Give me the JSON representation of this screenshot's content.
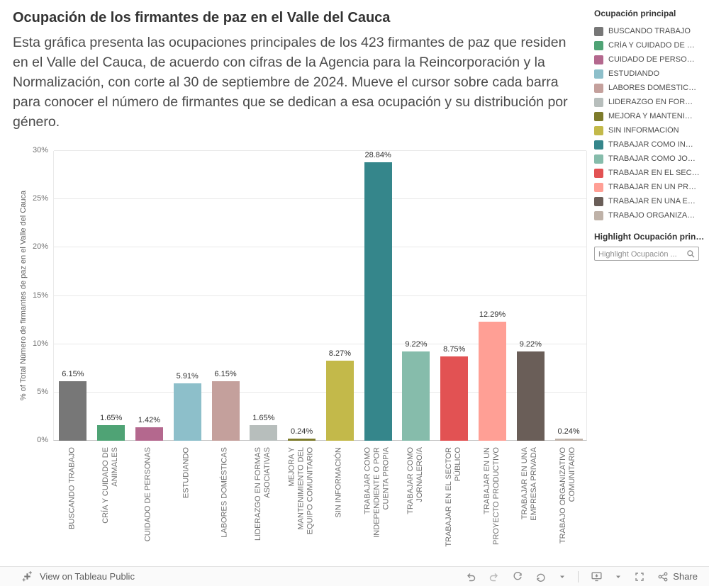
{
  "header": {
    "title": "Ocupación de los firmantes de paz en el Valle del Cauca",
    "description": "Esta gráfica presenta las ocupaciones principales de los 423 firmantes de paz que residen en el Valle del Cauca, de acuerdo con cifras de la Agencia para la Reincorporación y la Normalización, con corte al 30 de septiembre de 2024. Mueve el cursor sobre cada barra para conocer el número de firmantes que se dedican a esa ocupación y su distribución por género."
  },
  "chart_data": {
    "type": "bar",
    "title": "Ocupación de los firmantes de paz en el Valle del Cauca",
    "xlabel": "",
    "ylabel": "% of Total Número de firmantes de paz en el Valle del Cauca",
    "ylim": [
      0,
      30
    ],
    "yticks": [
      0,
      5,
      10,
      15,
      20,
      25,
      30
    ],
    "ytick_labels": [
      "0%",
      "5%",
      "10%",
      "15%",
      "20%",
      "25%",
      "30%"
    ],
    "grid": true,
    "legend_position": "right",
    "categories": [
      "BUSCANDO TRABAJO",
      "CRÍA Y CUIDADO DE ANIMALES",
      "CUIDADO DE PERSONAS",
      "ESTUDIANDO",
      "LABORES DOMÉSTICAS",
      "LIDERAZGO EN FORMAS ASOCIATIVAS",
      "MEJORA Y MANTENIMIENTO DEL EQUIPO COMUNITARIO",
      "SIN INFORMACIÓN",
      "TRABAJAR COMO INDEPENDIENTE O POR CUENTA PROPIA",
      "TRABAJAR COMO JORNALERO/A",
      "TRABAJAR EN EL SECTOR PÚBLICO",
      "TRABAJAR EN UN PROYECTO PRODUCTIVO",
      "TRABAJAR EN UNA EMPRESA PRIVADA",
      "TRABAJO ORGANIZATIVO COMUNITARIO"
    ],
    "values": [
      6.15,
      1.65,
      1.42,
      5.91,
      6.15,
      1.65,
      0.24,
      8.27,
      28.84,
      9.22,
      8.75,
      12.29,
      9.22,
      0.24
    ],
    "bar_labels": [
      "6.15%",
      "1.65%",
      "1.42%",
      "5.91%",
      "6.15%",
      "1.65%",
      "0.24%",
      "8.27%",
      "28.84%",
      "9.22%",
      "8.75%",
      "12.29%",
      "9.22%",
      "0.24%"
    ],
    "colors": [
      "#777777",
      "#4fa375",
      "#b4688e",
      "#8dbfca",
      "#c4a09c",
      "#b7bebc",
      "#7d7b2b",
      "#c3b94a",
      "#35868b",
      "#86bcab",
      "#e25253",
      "#ff9f95",
      "#6a5e58",
      "#bfb2a8"
    ]
  },
  "legend": {
    "title": "Ocupación principal",
    "items": [
      {
        "label": "BUSCANDO TRABAJO",
        "color": "#777777"
      },
      {
        "label": "CRÍA Y CUIDADO DE …",
        "color": "#4fa375"
      },
      {
        "label": "CUIDADO DE PERSO…",
        "color": "#b4688e"
      },
      {
        "label": "ESTUDIANDO",
        "color": "#8dbfca"
      },
      {
        "label": "LABORES DOMÉSTIC…",
        "color": "#c4a09c"
      },
      {
        "label": "LIDERAZGO EN FOR…",
        "color": "#b7bebc"
      },
      {
        "label": "MEJORA Y MANTENI…",
        "color": "#7d7b2b"
      },
      {
        "label": "SIN INFORMACIÓN",
        "color": "#c3b94a"
      },
      {
        "label": "TRABAJAR COMO IN…",
        "color": "#35868b"
      },
      {
        "label": "TRABAJAR COMO JO…",
        "color": "#86bcab"
      },
      {
        "label": "TRABAJAR EN EL SEC…",
        "color": "#e25253"
      },
      {
        "label": "TRABAJAR EN UN PR…",
        "color": "#ff9f95"
      },
      {
        "label": "TRABAJAR EN UNA E…",
        "color": "#6a5e58"
      },
      {
        "label": "TRABAJO ORGANIZA…",
        "color": "#bfb2a8"
      }
    ]
  },
  "highlighter": {
    "title": "Highlight Ocupación prin…",
    "placeholder": "Highlight Ocupación ..."
  },
  "footer": {
    "view_text": "View on Tableau Public",
    "share_label": "Share"
  }
}
